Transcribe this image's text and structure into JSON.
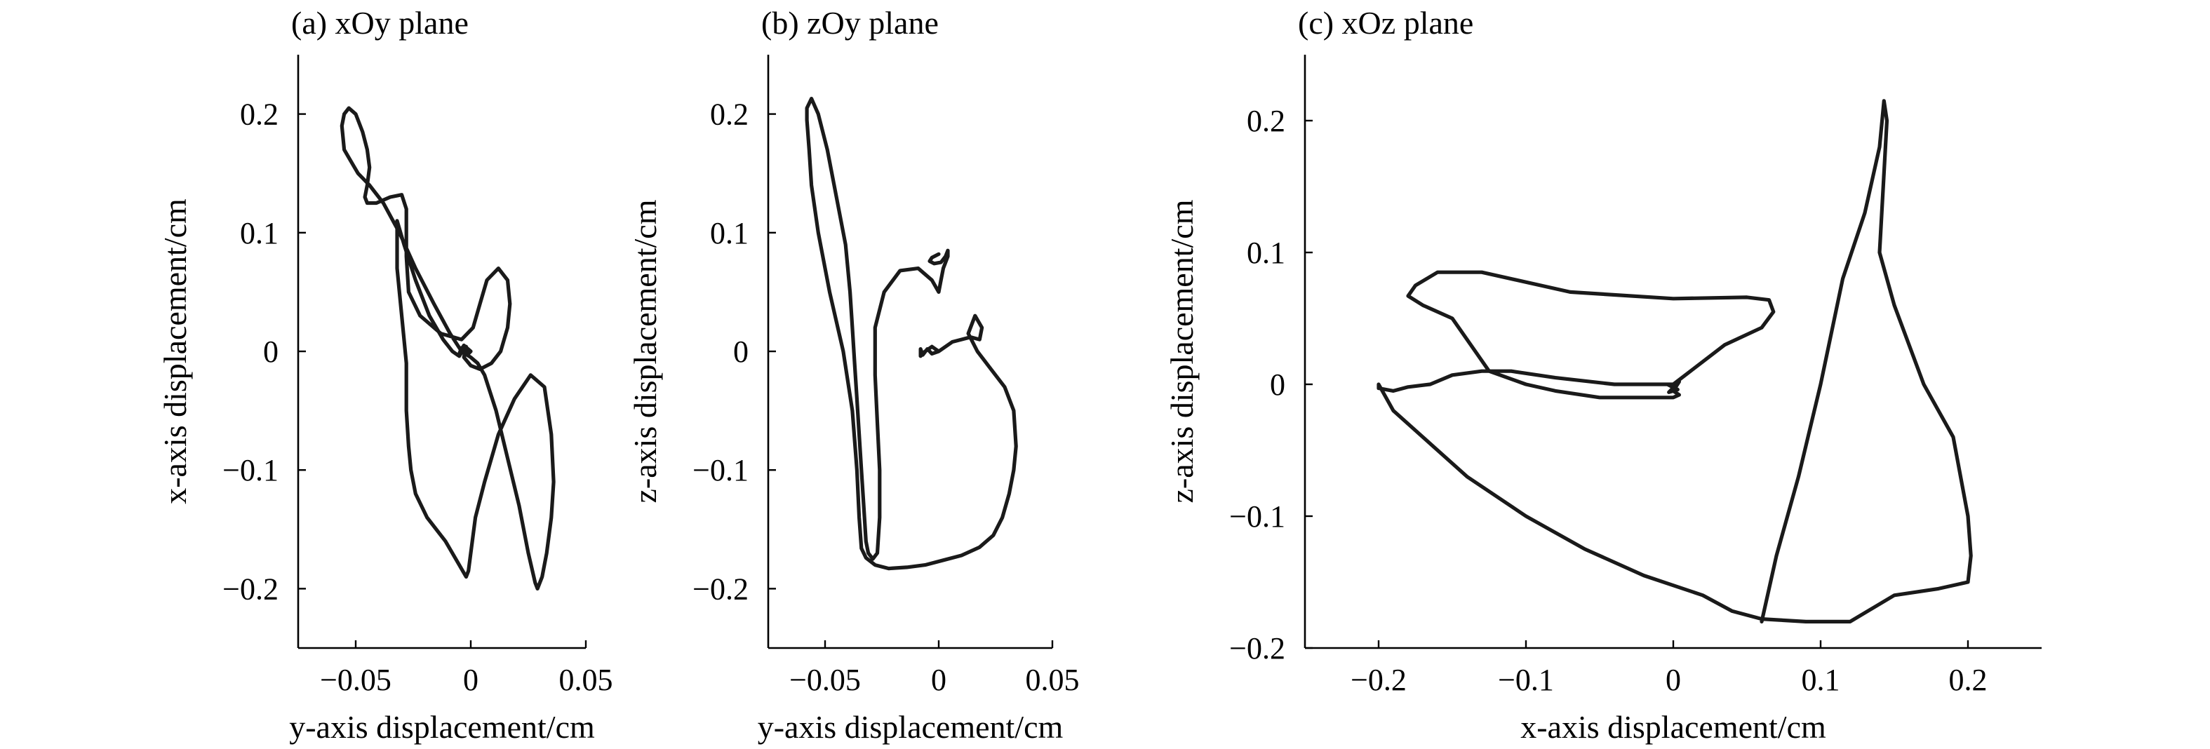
{
  "chart_data": [
    {
      "type": "line",
      "title": "(a) xOy plane",
      "xlabel": "y-axis displacement/cm",
      "ylabel": "x-axis displacement/cm",
      "xlim": [
        -0.075,
        0.05
      ],
      "ylim": [
        -0.25,
        0.25
      ],
      "xticks": [
        -0.05,
        0,
        0.05
      ],
      "xtick_labels": [
        "−0.05",
        "0",
        "0.05"
      ],
      "yticks": [
        -0.2,
        -0.1,
        0,
        0.1,
        0.2
      ],
      "ytick_labels": [
        "−0.2",
        "−0.1",
        "0",
        "0.1",
        "0.2"
      ],
      "grid": false,
      "series": [
        {
          "x": [
            0.0,
            -0.003,
            -0.005,
            -0.004,
            -0.002,
            -0.003,
            -0.005,
            -0.008,
            -0.012,
            -0.018,
            -0.024,
            -0.029,
            -0.032,
            -0.032,
            -0.03,
            -0.028,
            -0.028,
            -0.027,
            -0.026,
            -0.024,
            -0.019,
            -0.011,
            -0.005,
            -0.002,
            -0.001,
            0.0,
            0.002,
            0.006,
            0.012,
            0.019,
            0.026,
            0.032,
            0.035,
            0.036,
            0.035,
            0.033,
            0.031,
            0.029,
            0.028,
            0.025,
            0.021,
            0.016,
            0.011,
            0.006,
            0.003,
            0.0,
            -0.004,
            -0.009,
            -0.016,
            -0.024,
            -0.031,
            -0.038,
            -0.044,
            -0.049,
            -0.052,
            -0.055,
            -0.056,
            -0.055,
            -0.053,
            -0.05,
            -0.047,
            -0.045,
            -0.044,
            -0.045,
            -0.046,
            -0.045,
            -0.041,
            -0.035,
            -0.03,
            -0.028,
            -0.028,
            -0.027,
            -0.022,
            -0.013,
            -0.004,
            0.001,
            0.004,
            0.007,
            0.012,
            0.016,
            0.017,
            0.016,
            0.013,
            0.009,
            0.004,
            0.0,
            -0.003,
            -0.002,
            -0.001,
            0.0
          ],
          "y": [
            0.0,
            0.005,
            -0.002,
            0.003,
            -0.003,
            0.002,
            -0.004,
            0.0,
            0.01,
            0.03,
            0.06,
            0.09,
            0.11,
            0.07,
            0.03,
            -0.01,
            -0.05,
            -0.08,
            -0.1,
            -0.12,
            -0.14,
            -0.16,
            -0.18,
            -0.19,
            -0.185,
            -0.17,
            -0.14,
            -0.11,
            -0.07,
            -0.04,
            -0.02,
            -0.03,
            -0.07,
            -0.11,
            -0.14,
            -0.17,
            -0.19,
            -0.2,
            -0.195,
            -0.17,
            -0.13,
            -0.09,
            -0.05,
            -0.02,
            -0.01,
            -0.005,
            -0.0,
            0.015,
            0.04,
            0.07,
            0.1,
            0.125,
            0.14,
            0.15,
            0.16,
            0.17,
            0.19,
            0.2,
            0.205,
            0.2,
            0.185,
            0.17,
            0.155,
            0.14,
            0.13,
            0.125,
            0.125,
            0.13,
            0.132,
            0.12,
            0.08,
            0.05,
            0.03,
            0.015,
            0.01,
            0.02,
            0.04,
            0.06,
            0.07,
            0.06,
            0.04,
            0.02,
            0.0,
            -0.01,
            -0.015,
            -0.012,
            -0.005,
            0.004,
            -0.002,
            0.0
          ]
        }
      ]
    },
    {
      "type": "line",
      "title": "(b) zOy plane",
      "xlabel": "y-axis displacement/cm",
      "ylabel": "z-axis displacement/cm",
      "xlim": [
        -0.075,
        0.05
      ],
      "ylim": [
        -0.25,
        0.25
      ],
      "xticks": [
        -0.05,
        0,
        0.05
      ],
      "xtick_labels": [
        "−0.05",
        "0",
        "0.05"
      ],
      "yticks": [
        -0.2,
        -0.1,
        0,
        0.1,
        0.2
      ],
      "ytick_labels": [
        "−0.2",
        "−0.1",
        "0",
        "0.1",
        "0.2"
      ],
      "grid": false,
      "series": [
        {
          "x": [
            0.0,
            -0.003,
            -0.006,
            -0.008,
            -0.008,
            -0.007,
            -0.005,
            -0.003,
            0.0,
            0.003,
            0.006,
            0.01,
            0.014,
            0.018,
            0.019,
            0.016,
            0.013,
            0.017,
            0.023,
            0.029,
            0.033,
            0.034,
            0.033,
            0.031,
            0.028,
            0.024,
            0.018,
            0.01,
            0.002,
            -0.006,
            -0.014,
            -0.022,
            -0.028,
            -0.032,
            -0.034,
            -0.035,
            -0.036,
            -0.038,
            -0.042,
            -0.048,
            -0.053,
            -0.056,
            -0.057,
            -0.058,
            -0.058,
            -0.056,
            -0.053,
            -0.049,
            -0.045,
            -0.041,
            -0.039,
            -0.038,
            -0.037,
            -0.036,
            -0.035,
            -0.034,
            -0.033,
            -0.032,
            -0.031,
            -0.029,
            -0.027,
            -0.026,
            -0.026,
            -0.027,
            -0.028,
            -0.028,
            -0.024,
            -0.017,
            -0.009,
            -0.003,
            0.0,
            0.001,
            0.002,
            0.004,
            0.004,
            0.003,
            0.001,
            -0.002,
            -0.004,
            -0.003,
            0.0
          ],
          "y": [
            0.0,
            0.004,
            0.0,
            -0.004,
            0.002,
            -0.003,
            0.002,
            -0.002,
            0.0,
            0.004,
            0.008,
            0.01,
            0.012,
            0.01,
            0.02,
            0.03,
            0.015,
            0.0,
            -0.015,
            -0.03,
            -0.05,
            -0.08,
            -0.1,
            -0.12,
            -0.14,
            -0.155,
            -0.165,
            -0.172,
            -0.176,
            -0.18,
            -0.182,
            -0.183,
            -0.18,
            -0.174,
            -0.166,
            -0.14,
            -0.1,
            -0.05,
            0.0,
            0.05,
            0.1,
            0.14,
            0.17,
            0.195,
            0.205,
            0.213,
            0.2,
            0.17,
            0.13,
            0.09,
            0.05,
            0.02,
            -0.01,
            -0.04,
            -0.07,
            -0.1,
            -0.13,
            -0.16,
            -0.17,
            -0.175,
            -0.17,
            -0.14,
            -0.1,
            -0.06,
            -0.02,
            0.02,
            0.05,
            0.068,
            0.07,
            0.06,
            0.05,
            0.06,
            0.07,
            0.08,
            0.085,
            0.08,
            0.075,
            0.074,
            0.076,
            0.079,
            0.082
          ]
        }
      ]
    },
    {
      "type": "line",
      "title": "(c) xOz plane",
      "xlabel": "x-axis displacement/cm",
      "ylabel": "z-axis displacement/cm",
      "xlim": [
        -0.25,
        0.25
      ],
      "ylim": [
        -0.2,
        0.25
      ],
      "xticks": [
        -0.2,
        -0.1,
        0,
        0.1,
        0.2
      ],
      "xtick_labels": [
        "−0.2",
        "−0.1",
        "0",
        "0.1",
        "0.2"
      ],
      "yticks": [
        -0.2,
        -0.1,
        0,
        0.1,
        0.2
      ],
      "ytick_labels": [
        "−0.2",
        "−0.1",
        "0",
        "0.1",
        "0.2"
      ],
      "grid": false,
      "series": [
        {
          "x": [
            0.0,
            -0.004,
            0.003,
            -0.003,
            0.004,
            0.0,
            0.004,
            0.0,
            -0.02,
            -0.05,
            -0.08,
            -0.1,
            -0.125,
            -0.15,
            -0.17,
            -0.18,
            -0.175,
            -0.16,
            -0.13,
            -0.07,
            0.0,
            0.05,
            0.065,
            0.068,
            0.06,
            0.035,
            0.0,
            -0.04,
            -0.08,
            -0.11,
            -0.13,
            -0.15,
            -0.165,
            -0.18,
            -0.19,
            -0.2,
            -0.2,
            -0.19,
            -0.17,
            -0.14,
            -0.1,
            -0.06,
            -0.02,
            0.02,
            0.04,
            0.06,
            0.09,
            0.12,
            0.15,
            0.18,
            0.2,
            0.202,
            0.2,
            0.195,
            0.19,
            0.18,
            0.17,
            0.16,
            0.15,
            0.14,
            0.145,
            0.143,
            0.14,
            0.13,
            0.115,
            0.1,
            0.085,
            0.07,
            0.06
          ],
          "y": [
            0.0,
            0.0,
            -0.004,
            -0.006,
            0.002,
            -0.005,
            -0.008,
            -0.01,
            -0.01,
            -0.01,
            -0.005,
            0.0,
            0.01,
            0.05,
            0.06,
            0.067,
            0.075,
            0.085,
            0.085,
            0.07,
            0.065,
            0.066,
            0.064,
            0.055,
            0.043,
            0.03,
            0.0,
            0.0,
            0.005,
            0.01,
            0.01,
            0.007,
            0.0,
            -0.002,
            -0.005,
            -0.003,
            0.0,
            -0.02,
            -0.04,
            -0.07,
            -0.1,
            -0.125,
            -0.145,
            -0.16,
            -0.172,
            -0.178,
            -0.18,
            -0.18,
            -0.16,
            -0.155,
            -0.15,
            -0.13,
            -0.1,
            -0.07,
            -0.04,
            -0.02,
            0.0,
            0.03,
            0.06,
            0.1,
            0.2,
            0.215,
            0.18,
            0.13,
            0.08,
            0.0,
            -0.07,
            -0.13,
            -0.18
          ]
        }
      ]
    }
  ]
}
